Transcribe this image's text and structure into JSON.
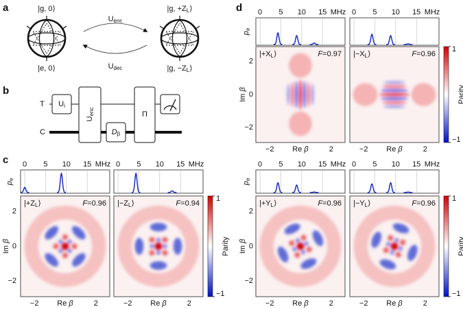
{
  "panel_a": {
    "label": "a",
    "left_top": "|g, 0⟩",
    "left_bottom": "|e, 0⟩",
    "encode": {
      "main": "U",
      "sub": "enc"
    },
    "decode": {
      "main": "U",
      "sub": "dec"
    },
    "right_top": {
      "pre": "|g, +Z",
      "sub": "L",
      "post": "⟩"
    },
    "right_bottom": {
      "pre": "|g, −Z",
      "sub": "L",
      "post": "⟩"
    }
  },
  "panel_b": {
    "label": "b",
    "transmon": "T",
    "cavity": "C",
    "gate_i": {
      "main": "U",
      "sub": "i"
    },
    "gate_enc": {
      "main": "U",
      "sub": "enc"
    },
    "displacement": {
      "symbol": "D",
      "sub": "β"
    },
    "parity_gate": "Π"
  },
  "axes": {
    "spectrum": {
      "xlim": [
        -1,
        20.4
      ],
      "xticks": [
        0,
        5,
        10,
        15
      ],
      "unit": "MHz",
      "ylim": [
        0,
        1
      ],
      "ylabel": {
        "symbol": "p",
        "sub": "e"
      }
    },
    "wigner": {
      "lim": [
        -2.9,
        2.9
      ],
      "xticks": [
        {
          "value": -2,
          "label": "−2"
        },
        2
      ],
      "yticks": [
        {
          "value": -2,
          "label": "−2"
        },
        0,
        2
      ],
      "xlabel": {
        "main": "Re ",
        "sym": "β"
      },
      "ylabel": {
        "main": "Im ",
        "sym": "β"
      }
    },
    "colorbar": {
      "lim": [
        -1,
        1
      ],
      "ticks": [
        {
          "value": -1,
          "label": "−1"
        },
        1
      ],
      "label": "Parity"
    }
  },
  "panel_c": {
    "label": "c",
    "rows": [
      {
        "plots": [
          {
            "state": {
              "pre": "|+Z",
              "sub": "L",
              "post": "⟩"
            },
            "fidelity": {
              "symbol": "F",
              "text": "=0.96"
            },
            "peaks": [
              {
                "x": 0,
                "height": 0.25
              },
              {
                "x": 8.8,
                "height": 0.85
              }
            ]
          },
          {
            "state": {
              "pre": "|−Z",
              "sub": "L",
              "post": "⟩"
            },
            "fidelity": {
              "symbol": "F",
              "text": "=0.94"
            },
            "peaks": [
              {
                "x": 4.3,
                "height": 0.85
              },
              {
                "x": 13,
                "height": 0.1
              }
            ]
          }
        ]
      }
    ]
  },
  "panel_d": {
    "label": "d",
    "rows": [
      {
        "plots": [
          {
            "state": {
              "pre": "|+X",
              "sub": "L",
              "post": "⟩"
            },
            "fidelity": {
              "symbol": "F",
              "text": "=0.97"
            },
            "peaks": [
              {
                "x": 4.3,
                "height": 0.45
              },
              {
                "x": 8.8,
                "height": 0.35
              },
              {
                "x": 13,
                "height": 0.08
              }
            ]
          },
          {
            "state": {
              "pre": "|−X",
              "sub": "L",
              "post": "⟩"
            },
            "fidelity": {
              "symbol": "F",
              "text": "=0.96"
            },
            "peaks": [
              {
                "x": 4.3,
                "height": 0.4
              },
              {
                "x": 8.8,
                "height": 0.35
              },
              {
                "x": 13,
                "height": 0.05
              }
            ]
          }
        ]
      },
      {
        "plots": [
          {
            "state": {
              "pre": "|+Y",
              "sub": "L",
              "post": "⟩"
            },
            "fidelity": {
              "symbol": "F",
              "text": "=0.96"
            },
            "peaks": [
              {
                "x": 4.3,
                "height": 0.45
              },
              {
                "x": 8.8,
                "height": 0.35
              },
              {
                "x": 13,
                "height": 0.05
              }
            ]
          },
          {
            "state": {
              "pre": "|−Y",
              "sub": "L",
              "post": "⟩"
            },
            "fidelity": {
              "symbol": "F",
              "text": "=0.96"
            },
            "peaks": [
              {
                "x": 4.3,
                "height": 0.4
              },
              {
                "x": 8.8,
                "height": 0.45
              },
              {
                "x": 13,
                "height": 0.05
              }
            ]
          }
        ]
      }
    ]
  }
}
